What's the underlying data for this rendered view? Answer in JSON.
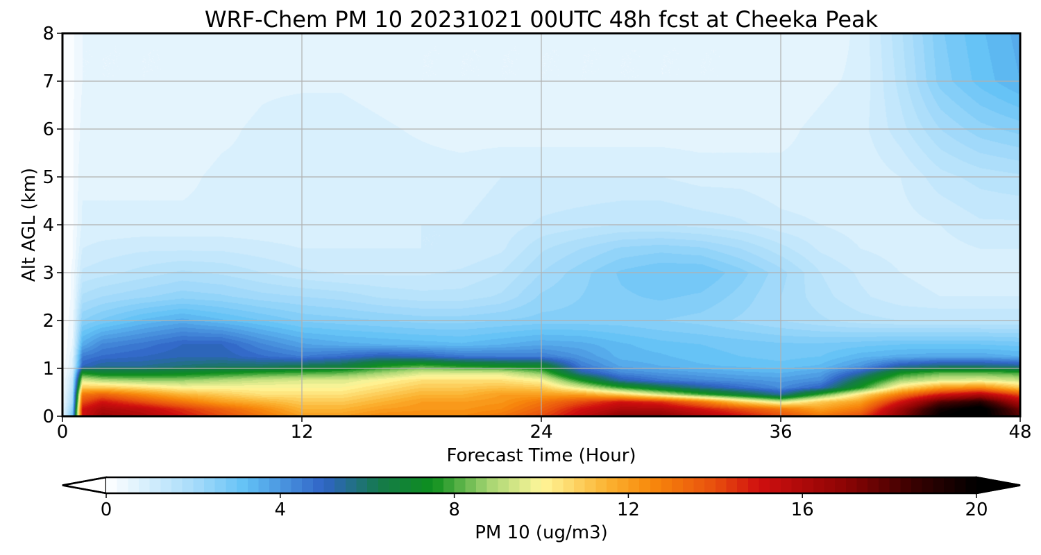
{
  "chart_data": {
    "type": "heatmap",
    "subtype": "filled-contour time-height cross section",
    "title": "WRF-Chem PM 10  20231021 00UTC 48h fcst at Cheeka Peak",
    "xlabel": "Forecast Time (Hour)",
    "ylabel": "Alt AGL (km)",
    "xlim": [
      0,
      48
    ],
    "ylim": [
      0,
      8
    ],
    "xticks": [
      0,
      12,
      24,
      36,
      48
    ],
    "yticks": [
      0,
      1,
      2,
      3,
      4,
      5,
      6,
      7,
      8
    ],
    "grid": true,
    "colorbar": {
      "label": "PM 10  (ug/m3)",
      "min": 0,
      "max": 20,
      "ticks": [
        0,
        4,
        8,
        12,
        16,
        20
      ],
      "extend": "both",
      "placement": "bottom",
      "color_stops": [
        {
          "v": 0,
          "c": "#ffffff"
        },
        {
          "v": 2,
          "c": "#a8dcfa"
        },
        {
          "v": 3.2,
          "c": "#62c1f6"
        },
        {
          "v": 5,
          "c": "#2f64c6"
        },
        {
          "v": 6.3,
          "c": "#157a4a"
        },
        {
          "v": 7.5,
          "c": "#0d8f1d"
        },
        {
          "v": 8.8,
          "c": "#a6d572"
        },
        {
          "v": 10,
          "c": "#fff79a"
        },
        {
          "v": 11.5,
          "c": "#fbb332"
        },
        {
          "v": 12.5,
          "c": "#f88a0c"
        },
        {
          "v": 14,
          "c": "#e84e0d"
        },
        {
          "v": 15,
          "c": "#d00f0f"
        },
        {
          "v": 17,
          "c": "#8c0404"
        },
        {
          "v": 18.5,
          "c": "#3b0101"
        },
        {
          "v": 20,
          "c": "#000000"
        }
      ],
      "under_color": "#ffffff",
      "over_color": "#000000"
    },
    "time_hours": [
      0,
      0.5,
      1,
      2,
      4,
      6,
      8,
      10,
      12,
      14,
      16,
      18,
      20,
      22,
      24,
      26,
      28,
      30,
      32,
      34,
      36,
      38,
      40,
      42,
      44,
      46,
      48
    ],
    "altitude_km": [
      0,
      0.15,
      0.3,
      0.45,
      0.6,
      0.75,
      0.9,
      1.05,
      1.25,
      1.5,
      2,
      2.5,
      3,
      3.5,
      4,
      5,
      6,
      7,
      8
    ],
    "pm10_ugm3": [
      [
        0.4,
        3,
        15,
        16.5,
        16,
        15,
        14,
        13,
        12,
        12,
        12.5,
        12.5,
        12.5,
        13,
        14,
        15.5,
        17,
        17,
        16,
        15,
        14,
        13,
        14,
        17,
        20,
        20.5,
        18
      ],
      [
        0.4,
        2.5,
        15,
        16,
        15.5,
        14.5,
        13.5,
        12.5,
        11.5,
        11.5,
        12,
        12.2,
        12.2,
        12.5,
        13.5,
        15,
        16,
        16,
        15,
        14,
        13,
        12,
        13,
        16.5,
        19.5,
        20.5,
        17.5
      ],
      [
        0.3,
        2,
        14,
        15,
        14,
        13,
        12,
        11.5,
        11,
        11,
        11.5,
        12,
        12,
        12.2,
        13,
        14,
        15,
        14.5,
        13,
        11,
        9.5,
        11,
        12,
        15,
        18,
        19,
        16
      ],
      [
        0.3,
        1.8,
        13,
        13.5,
        12.5,
        11.5,
        11,
        10.5,
        10.5,
        10.5,
        11,
        11.5,
        11.5,
        12,
        12,
        12,
        11,
        9.5,
        8,
        6.8,
        5.5,
        8,
        10.5,
        13,
        15,
        16,
        14
      ],
      [
        0.2,
        1.5,
        11,
        11,
        10.5,
        10,
        10,
        10,
        10,
        10,
        10.5,
        11,
        11,
        11.2,
        11,
        9.5,
        7.8,
        6.5,
        5.5,
        4.8,
        4.2,
        5,
        7.5,
        10.5,
        12,
        12.5,
        11
      ],
      [
        0.2,
        1.3,
        9.5,
        9,
        8.7,
        8.7,
        9,
        9.3,
        9.5,
        9.5,
        10,
        10.5,
        10.5,
        10.5,
        10,
        7.5,
        5.3,
        4.6,
        4.3,
        4.1,
        3.9,
        4.2,
        6.5,
        8.8,
        9.5,
        9.7,
        9.3
      ],
      [
        0.1,
        1,
        7.5,
        7,
        7,
        7.2,
        7.5,
        7.8,
        8,
        8.2,
        8.8,
        9.5,
        9.5,
        9.5,
        8.5,
        5.5,
        4.3,
        4,
        3.8,
        3.6,
        3.5,
        3.8,
        5.3,
        7.5,
        8.2,
        8.2,
        8
      ],
      [
        0.1,
        0.8,
        5,
        5.5,
        5.5,
        5.8,
        6,
        6,
        6.2,
        6.5,
        7.5,
        8,
        7.5,
        7.2,
        7,
        4.5,
        3.7,
        3.5,
        3.3,
        3.2,
        3.1,
        3.3,
        4,
        5.3,
        5.8,
        5.8,
        5.5
      ],
      [
        0,
        0.7,
        4.5,
        4.8,
        5,
        5.2,
        5.2,
        4.8,
        4.5,
        4.8,
        5.2,
        5,
        4.6,
        4.5,
        4.5,
        4,
        3.4,
        3.3,
        3.1,
        3,
        2.9,
        3,
        3.4,
        3.6,
        3.7,
        3.7,
        3.5
      ],
      [
        0,
        0.5,
        3.6,
        4.3,
        4.6,
        5,
        5,
        4.3,
        3.8,
        3.6,
        3.5,
        3.4,
        3.3,
        3.5,
        3.7,
        3.6,
        3.3,
        3.1,
        3,
        2.9,
        2.8,
        2.8,
        2.9,
        3,
        3,
        3,
        2.9
      ],
      [
        0,
        0.4,
        2.5,
        2.8,
        3.3,
        3.6,
        3.3,
        3,
        2.7,
        2.6,
        2.5,
        2.4,
        2.4,
        2.5,
        2.6,
        2.6,
        2.6,
        2.5,
        2.4,
        2.2,
        2,
        1.8,
        1.6,
        1.5,
        1.5,
        1.5,
        1.5
      ],
      [
        0,
        0.3,
        1.8,
        2,
        2.2,
        2.4,
        2.3,
        2.1,
        2,
        1.9,
        1.7,
        1.6,
        1.6,
        1.8,
        2.3,
        2.5,
        2.7,
        2.8,
        2.7,
        2.4,
        2,
        1.6,
        1.3,
        1.1,
        1,
        1,
        1
      ],
      [
        0,
        0.3,
        1.3,
        1.4,
        1.6,
        1.8,
        1.7,
        1.5,
        1.3,
        1.2,
        1.2,
        1.2,
        1.3,
        1.5,
        2,
        2.4,
        2.8,
        3,
        3,
        2.6,
        2.1,
        1.5,
        1.2,
        1,
        0.9,
        0.9,
        0.9
      ],
      [
        0,
        0.2,
        1,
        1.1,
        1.2,
        1.2,
        1.2,
        1.1,
        1,
        1,
        1,
        1,
        1,
        1.2,
        1.7,
        2,
        2.3,
        2.4,
        2.3,
        2,
        1.6,
        1.2,
        1,
        0.9,
        0.9,
        1,
        1
      ],
      [
        0,
        0.2,
        0.8,
        0.8,
        0.8,
        0.8,
        0.8,
        0.8,
        0.8,
        0.8,
        0.9,
        1,
        1,
        1.1,
        1.3,
        1.4,
        1.5,
        1.5,
        1.4,
        1.3,
        1.1,
        1,
        0.9,
        0.9,
        1,
        1.2,
        1.2
      ],
      [
        0,
        0.2,
        0.7,
        0.7,
        0.7,
        0.7,
        0.8,
        0.8,
        0.9,
        0.9,
        0.9,
        0.9,
        0.9,
        1,
        1,
        1,
        1,
        1,
        0.9,
        0.9,
        0.8,
        0.8,
        0.8,
        1,
        1.4,
        1.6,
        1.7
      ],
      [
        0,
        0.2,
        0.6,
        0.6,
        0.6,
        0.6,
        0.7,
        0.8,
        0.9,
        0.9,
        0.8,
        0.7,
        0.6,
        0.6,
        0.6,
        0.6,
        0.6,
        0.6,
        0.6,
        0.6,
        0.7,
        0.8,
        0.9,
        1.4,
        2,
        2.4,
        2.6
      ],
      [
        0,
        0.2,
        0.5,
        0.5,
        0.5,
        0.5,
        0.6,
        0.7,
        0.7,
        0.7,
        0.6,
        0.5,
        0.5,
        0.5,
        0.5,
        0.5,
        0.5,
        0.5,
        0.5,
        0.5,
        0.6,
        0.7,
        0.8,
        1.6,
        2.6,
        3.1,
        3.5
      ],
      [
        0,
        0.2,
        0.5,
        0.5,
        0.5,
        0.5,
        0.5,
        0.6,
        0.6,
        0.5,
        0.5,
        0.5,
        0.5,
        0.5,
        0.5,
        0.5,
        0.5,
        0.5,
        0.5,
        0.5,
        0.5,
        0.6,
        0.8,
        1.7,
        2.7,
        3.2,
        3.6
      ]
    ]
  }
}
